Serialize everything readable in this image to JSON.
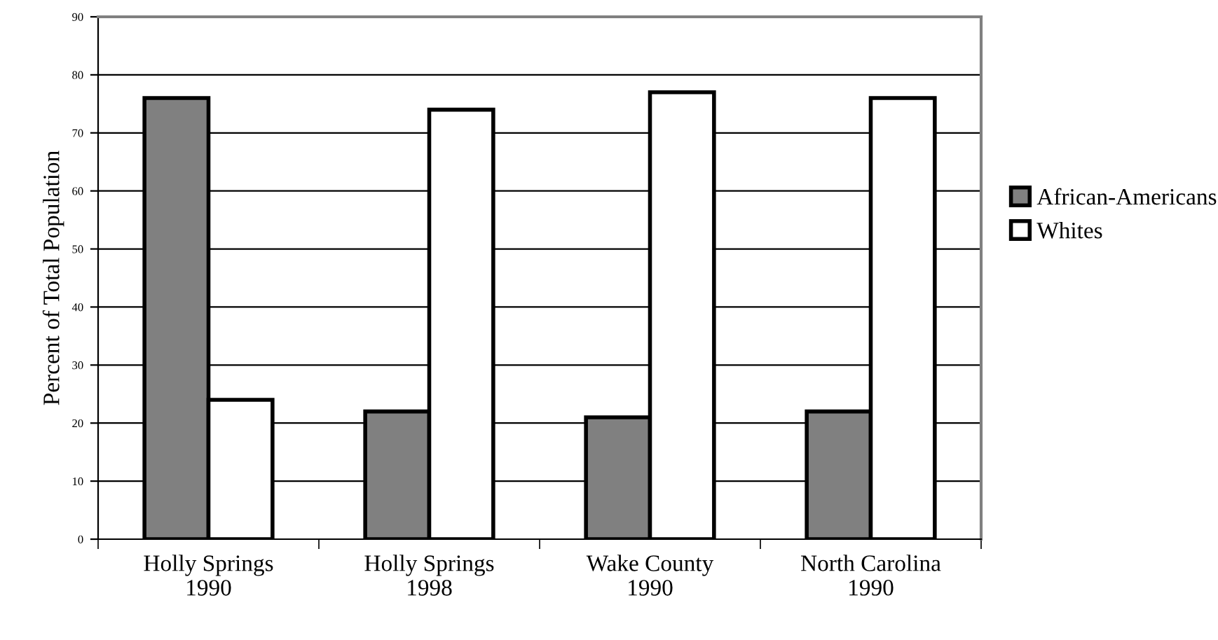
{
  "chart_data": {
    "type": "bar",
    "ylabel": "Percent of Total Population",
    "categories": [
      "Holly Springs\n1990",
      "Holly Springs\n1998",
      "Wake County\n1990",
      "North Carolina\n1990"
    ],
    "series": [
      {
        "name": "African-Americans",
        "color": "#808080",
        "values": [
          76,
          22,
          21,
          22
        ]
      },
      {
        "name": "Whites",
        "color": "#ffffff",
        "values": [
          24,
          74,
          77,
          76
        ]
      }
    ],
    "ylim": [
      0,
      90
    ],
    "yticks": [
      0,
      10,
      20,
      30,
      40,
      50,
      60,
      70,
      80,
      90
    ],
    "grid": "y",
    "legend": "right"
  }
}
